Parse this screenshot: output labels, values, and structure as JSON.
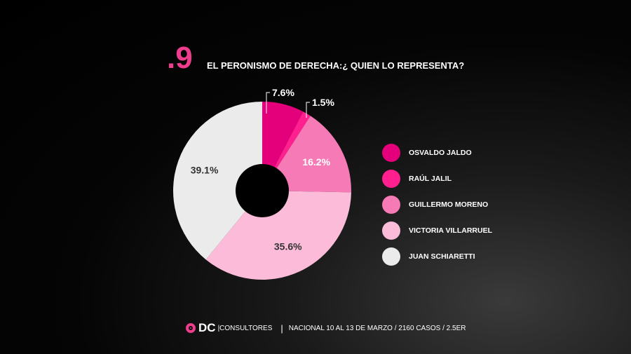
{
  "header": {
    "number": ".9",
    "title": "EL PERONISMO DE DERECHA:¿ QUIEN LO REPRESENTA?"
  },
  "chart_data": {
    "type": "pie",
    "donut": true,
    "categories": [
      "OSVALDO JALDO",
      "RAÚL JALIL",
      "GUILLERMO MORENO",
      "VICTORIA VILLARRUEL",
      "JUAN SCHIARETTI"
    ],
    "values": [
      7.6,
      1.5,
      16.2,
      35.6,
      39.1
    ],
    "labels": [
      "7.6%",
      "1.5%",
      "16.2%",
      "35.6%",
      "39.1%"
    ],
    "colors": [
      "#e3007a",
      "#ff1f8f",
      "#f57ab5",
      "#fbbbd9",
      "#ebebeb"
    ],
    "legend": "right"
  },
  "footer": {
    "logo": "DC",
    "brand": "CONSULTORES",
    "info": "NACIONAL  10 AL 13 DE MARZO / 2160 CASOS / 2.5ER"
  }
}
